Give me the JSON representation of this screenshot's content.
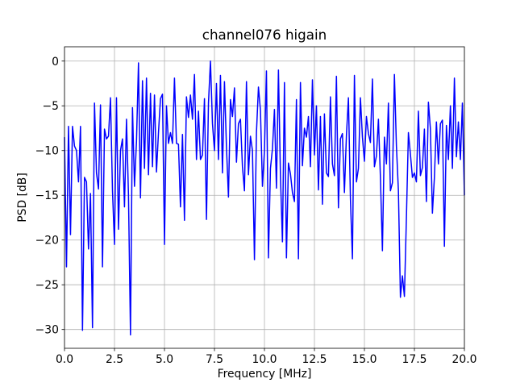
{
  "chart_data": {
    "type": "line",
    "title": "channel076 higain",
    "xlabel": "Frequency [MHz]",
    "ylabel": "PSD [dB]",
    "xlim": [
      0,
      20
    ],
    "ylim": [
      -32.1,
      1.6
    ],
    "xticks": [
      {
        "value": 0,
        "label": "0.0"
      },
      {
        "value": 2.5,
        "label": "2.5"
      },
      {
        "value": 5,
        "label": "5.0"
      },
      {
        "value": 7.5,
        "label": "7.5"
      },
      {
        "value": 10,
        "label": "10.0"
      },
      {
        "value": 12.5,
        "label": "12.5"
      },
      {
        "value": 15,
        "label": "15.0"
      },
      {
        "value": 17.5,
        "label": "17.5"
      },
      {
        "value": 20,
        "label": "20.0"
      }
    ],
    "yticks": [
      {
        "value": -30,
        "label": "−30"
      },
      {
        "value": -25,
        "label": "−25"
      },
      {
        "value": -20,
        "label": "−20"
      },
      {
        "value": -15,
        "label": "−15"
      },
      {
        "value": -10,
        "label": "−10"
      },
      {
        "value": -5,
        "label": "−5"
      },
      0
    ],
    "grid": true,
    "color": "#0000ff",
    "x": [
      0,
      0.1,
      0.2,
      0.3,
      0.4,
      0.5,
      0.6,
      0.7,
      0.8,
      0.9,
      1,
      1.1,
      1.2,
      1.3,
      1.4,
      1.5,
      1.6,
      1.7,
      1.8,
      1.9,
      2,
      2.1,
      2.2,
      2.3,
      2.4,
      2.5,
      2.6,
      2.7,
      2.8,
      2.9,
      3,
      3.1,
      3.2,
      3.3,
      3.4,
      3.5,
      3.6,
      3.7,
      3.8,
      3.9,
      4,
      4.1,
      4.2,
      4.3,
      4.4,
      4.5,
      4.6,
      4.7,
      4.8,
      4.9,
      5,
      5.1,
      5.2,
      5.3,
      5.4,
      5.5,
      5.6,
      5.7,
      5.8,
      5.9,
      6,
      6.1,
      6.2,
      6.3,
      6.4,
      6.5,
      6.6,
      6.7,
      6.8,
      6.9,
      7,
      7.1,
      7.2,
      7.3,
      7.4,
      7.5,
      7.6,
      7.7,
      7.8,
      7.9,
      8,
      8.1,
      8.2,
      8.3,
      8.4,
      8.5,
      8.6,
      8.7,
      8.8,
      8.9,
      9,
      9.1,
      9.2,
      9.3,
      9.4,
      9.5,
      9.6,
      9.7,
      9.8,
      9.9,
      10,
      10.1,
      10.2,
      10.3,
      10.4,
      10.5,
      10.6,
      10.7,
      10.8,
      10.9,
      11,
      11.1,
      11.2,
      11.3,
      11.4,
      11.5,
      11.6,
      11.7,
      11.8,
      11.9,
      12,
      12.1,
      12.2,
      12.3,
      12.4,
      12.5,
      12.6,
      12.7,
      12.8,
      12.9,
      13,
      13.1,
      13.2,
      13.3,
      13.4,
      13.5,
      13.6,
      13.7,
      13.8,
      13.9,
      14,
      14.1,
      14.2,
      14.3,
      14.4,
      14.5,
      14.6,
      14.7,
      14.8,
      14.9,
      15,
      15.1,
      15.2,
      15.3,
      15.4,
      15.5,
      15.6,
      15.7,
      15.8,
      15.9,
      16,
      16.1,
      16.2,
      16.3,
      16.4,
      16.5,
      16.6,
      16.7,
      16.8,
      16.9,
      17,
      17.1,
      17.2,
      17.3,
      17.4,
      17.5,
      17.6,
      17.7,
      17.8,
      17.9,
      18,
      18.1,
      18.2,
      18.3,
      18.4,
      18.5,
      18.6,
      18.7,
      18.8,
      18.9,
      19,
      19.1,
      19.2,
      19.3,
      19.4,
      19.5,
      19.6,
      19.7,
      19.8,
      19.9,
      20
    ],
    "values": [
      -8.5,
      -23,
      -7.3,
      -19.4,
      -7.3,
      -9.5,
      -10,
      -13.5,
      -7.3,
      -30.1,
      -13,
      -13.5,
      -21,
      -14.8,
      -29.8,
      -4.7,
      -12.5,
      -14.3,
      -4.9,
      -23,
      -7.6,
      -8.7,
      -8.4,
      -4.1,
      -14.5,
      -20.5,
      -4.1,
      -18.8,
      -10,
      -8.7,
      -16.3,
      -6.5,
      -15,
      -30.6,
      -5.2,
      -14,
      -9,
      -0.2,
      -15.3,
      -2.2,
      -12,
      -1.9,
      -12.7,
      -3.6,
      -11.8,
      -3.8,
      -12.4,
      -8,
      -4.2,
      -3.7,
      -20.5,
      -5,
      -9.2,
      -8,
      -9.2,
      -1.9,
      -9.2,
      -9.3,
      -16.3,
      -8.2,
      -17.8,
      -4,
      -6.3,
      -3.8,
      -6.5,
      -1.5,
      -11,
      -5.6,
      -11,
      -10.5,
      -4.2,
      -17.7,
      -4.7,
      0,
      -7,
      -10,
      -2.5,
      -11,
      -1.6,
      -12.5,
      -2.3,
      -9.6,
      -15.2,
      -4.3,
      -6.2,
      -3,
      -11.3,
      -7,
      -6.5,
      -11.8,
      -14.5,
      -2.3,
      -12.7,
      -8.4,
      -10,
      -22.2,
      -8,
      -2.9,
      -5.5,
      -14,
      -10,
      -1.1,
      -22,
      -12,
      -9.8,
      -5.4,
      -14.2,
      -1,
      -12.8,
      -20.2,
      -2.4,
      -22,
      -11.4,
      -12.6,
      -14.7,
      -15.7,
      -4.3,
      -22.1,
      -2.4,
      -11.7,
      -7.5,
      -8.5,
      -6.2,
      -11.8,
      -2.1,
      -10.5,
      -5,
      -14.4,
      -6.2,
      -16,
      -5.9,
      -12.5,
      -12.9,
      -4,
      -11.5,
      -12.8,
      -1.7,
      -16.4,
      -8.7,
      -8.1,
      -14.7,
      -8.3,
      -4.1,
      -15.4,
      -22.1,
      -1.6,
      -13.5,
      -12,
      -4.1,
      -8.5,
      -11.2,
      -6.2,
      -8.1,
      -9.1,
      -2,
      -11.8,
      -10.6,
      -6.5,
      -13,
      -21.2,
      -8.5,
      -11.5,
      -4.7,
      -14.5,
      -13.6,
      -1.5,
      -9.5,
      -14.5,
      -26.4,
      -24,
      -26.3,
      -17.5,
      -8,
      -10.4,
      -13,
      -12.5,
      -13.5,
      -5.6,
      -12.8,
      -11.9,
      -7.6,
      -15.7,
      -4.6,
      -7.6,
      -17,
      -13,
      -6.8,
      -11.5,
      -7,
      -6.6,
      -20.7,
      -7.2,
      -11,
      -5,
      -12,
      -1.9,
      -10.7,
      -6.8,
      -11,
      -4.7,
      -15
    ]
  }
}
